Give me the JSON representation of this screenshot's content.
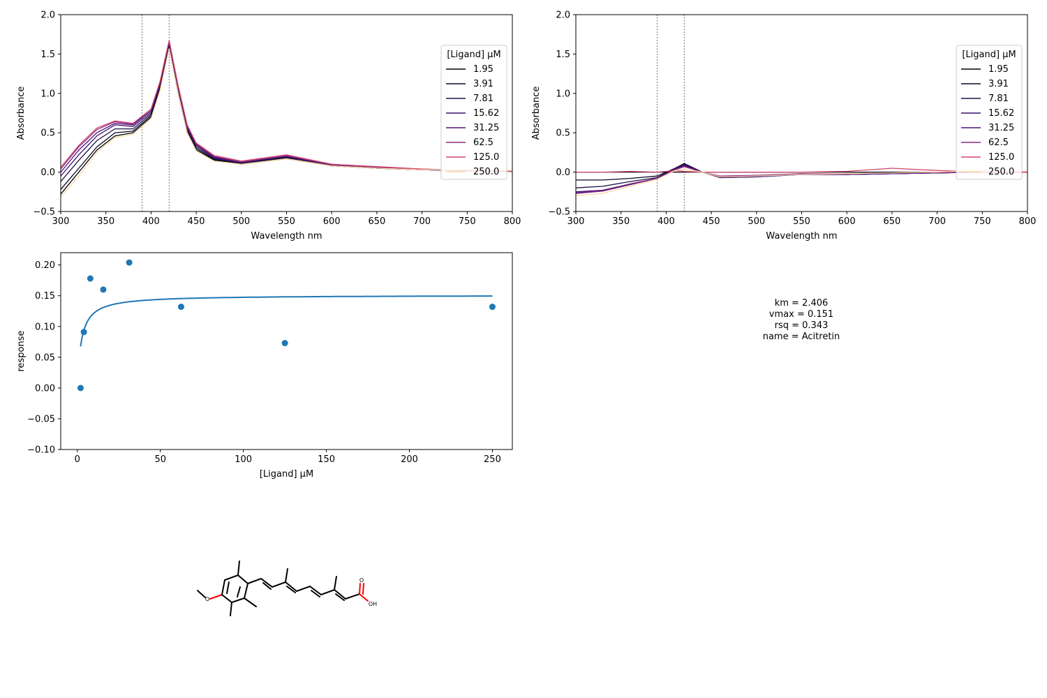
{
  "chart_data": [
    {
      "id": "spectra",
      "type": "line",
      "xlabel": "Wavelength nm",
      "ylabel": "Absorbance",
      "xlim": [
        300,
        800
      ],
      "ylim": [
        -0.5,
        2.0
      ],
      "xticks": [
        "300",
        "350",
        "400",
        "450",
        "500",
        "550",
        "600",
        "650",
        "700",
        "750",
        "800"
      ],
      "yticks": [
        "-0.5",
        "0.0",
        "0.5",
        "1.0",
        "1.5",
        "2.0"
      ],
      "vlines": [
        390,
        420
      ],
      "legend": {
        "title": "[Ligand] µM",
        "placement": "right"
      },
      "series": [
        {
          "name": "1.95",
          "color": "#000004",
          "x": [
            300,
            320,
            340,
            360,
            380,
            400,
            410,
            420,
            430,
            440,
            450,
            470,
            500,
            550,
            600,
            650,
            700,
            750,
            800
          ],
          "y": [
            -0.28,
            0.0,
            0.28,
            0.46,
            0.5,
            0.7,
            1.05,
            1.58,
            1.0,
            0.5,
            0.28,
            0.15,
            0.1,
            0.17,
            0.08,
            0.05,
            0.03,
            0.02,
            0.01
          ]
        },
        {
          "name": "3.91",
          "color": "#0b0724",
          "x": [
            300,
            320,
            340,
            360,
            380,
            400,
            410,
            420,
            430,
            440,
            450,
            470,
            500,
            550,
            600,
            650,
            700,
            750,
            800
          ],
          "y": [
            -0.22,
            0.05,
            0.32,
            0.5,
            0.52,
            0.72,
            1.08,
            1.6,
            1.02,
            0.52,
            0.3,
            0.16,
            0.11,
            0.18,
            0.08,
            0.05,
            0.03,
            0.02,
            0.01
          ]
        },
        {
          "name": "7.81",
          "color": "#1d1147",
          "x": [
            300,
            320,
            340,
            360,
            380,
            400,
            410,
            420,
            430,
            440,
            450,
            470,
            500,
            550,
            600,
            650,
            700,
            750,
            800
          ],
          "y": [
            -0.12,
            0.15,
            0.4,
            0.55,
            0.55,
            0.74,
            1.1,
            1.62,
            1.04,
            0.54,
            0.32,
            0.17,
            0.12,
            0.19,
            0.09,
            0.05,
            0.03,
            0.02,
            0.01
          ]
        },
        {
          "name": "15.62",
          "color": "#3b0f70",
          "x": [
            300,
            320,
            340,
            360,
            380,
            400,
            410,
            420,
            430,
            440,
            450,
            470,
            500,
            550,
            600,
            650,
            700,
            750,
            800
          ],
          "y": [
            -0.05,
            0.22,
            0.46,
            0.6,
            0.58,
            0.76,
            1.12,
            1.64,
            1.06,
            0.56,
            0.34,
            0.18,
            0.12,
            0.2,
            0.09,
            0.05,
            0.03,
            0.02,
            0.01
          ]
        },
        {
          "name": "31.25",
          "color": "#51127c",
          "x": [
            300,
            320,
            340,
            360,
            380,
            400,
            410,
            420,
            430,
            440,
            450,
            470,
            500,
            550,
            600,
            650,
            700,
            750,
            800
          ],
          "y": [
            0.0,
            0.28,
            0.5,
            0.62,
            0.6,
            0.78,
            1.14,
            1.66,
            1.08,
            0.58,
            0.35,
            0.19,
            0.13,
            0.2,
            0.09,
            0.06,
            0.03,
            0.02,
            0.01
          ]
        },
        {
          "name": "62.5",
          "color": "#8c2981",
          "x": [
            300,
            320,
            340,
            360,
            380,
            400,
            410,
            420,
            430,
            440,
            450,
            470,
            500,
            550,
            600,
            650,
            700,
            750,
            800
          ],
          "y": [
            0.04,
            0.32,
            0.54,
            0.64,
            0.61,
            0.8,
            1.15,
            1.67,
            1.09,
            0.59,
            0.36,
            0.2,
            0.13,
            0.21,
            0.1,
            0.06,
            0.04,
            0.02,
            0.01
          ]
        },
        {
          "name": "125.0",
          "color": "#d3436e",
          "x": [
            300,
            320,
            340,
            360,
            380,
            400,
            410,
            420,
            430,
            440,
            450,
            470,
            500,
            550,
            600,
            650,
            700,
            750,
            800
          ],
          "y": [
            0.06,
            0.34,
            0.56,
            0.65,
            0.62,
            0.8,
            1.15,
            1.67,
            1.1,
            0.6,
            0.37,
            0.21,
            0.14,
            0.22,
            0.1,
            0.07,
            0.04,
            0.02,
            0.01
          ]
        },
        {
          "name": "250.0",
          "color": "#fcd8a3",
          "x": [
            300,
            320,
            340,
            360,
            380,
            400,
            410,
            420,
            430,
            440,
            450,
            470,
            500,
            550,
            600,
            650,
            700,
            750,
            800
          ],
          "y": [
            -0.32,
            -0.05,
            0.25,
            0.44,
            0.48,
            0.68,
            1.04,
            1.57,
            1.0,
            0.5,
            0.27,
            0.14,
            0.1,
            0.17,
            0.08,
            0.05,
            0.03,
            0.03,
            0.02
          ]
        }
      ]
    },
    {
      "id": "difference",
      "type": "line",
      "xlabel": "Wavelength nm",
      "ylabel": "Absorbance",
      "xlim": [
        300,
        800
      ],
      "ylim": [
        -0.5,
        2.0
      ],
      "xticks": [
        "300",
        "350",
        "400",
        "450",
        "500",
        "550",
        "600",
        "650",
        "700",
        "750",
        "800"
      ],
      "yticks": [
        "-0.5",
        "0.0",
        "0.5",
        "1.0",
        "1.5",
        "2.0"
      ],
      "vlines": [
        390,
        420
      ],
      "legend": {
        "title": "[Ligand] µM",
        "placement": "right"
      },
      "series": [
        {
          "name": "1.95",
          "color": "#000004",
          "x": [
            300,
            350,
            400,
            420,
            440,
            460,
            500,
            550,
            600,
            650,
            700,
            750,
            800
          ],
          "y": [
            0.0,
            0.0,
            0.0,
            0.0,
            0.0,
            0.0,
            0.0,
            0.0,
            0.0,
            0.0,
            0.0,
            0.0,
            0.0
          ]
        },
        {
          "name": "3.91",
          "color": "#0b0724",
          "x": [
            300,
            330,
            360,
            390,
            410,
            420,
            440,
            460,
            500,
            550,
            600,
            650,
            700,
            750,
            800
          ],
          "y": [
            -0.1,
            -0.1,
            -0.08,
            -0.05,
            0.05,
            0.11,
            0.0,
            -0.06,
            -0.05,
            -0.02,
            -0.03,
            -0.02,
            -0.01,
            0.0,
            0.0
          ]
        },
        {
          "name": "7.81",
          "color": "#1d1147",
          "x": [
            300,
            330,
            360,
            390,
            410,
            420,
            440,
            460,
            500,
            550,
            600,
            650,
            700,
            750,
            800
          ],
          "y": [
            -0.2,
            -0.18,
            -0.12,
            -0.07,
            0.05,
            0.1,
            0.0,
            -0.07,
            -0.06,
            -0.03,
            -0.03,
            -0.02,
            -0.01,
            0.0,
            0.0
          ]
        },
        {
          "name": "15.62",
          "color": "#3b0f70",
          "x": [
            300,
            330,
            360,
            390,
            410,
            420,
            440,
            460,
            500,
            550,
            600,
            650,
            700,
            750,
            800
          ],
          "y": [
            -0.25,
            -0.23,
            -0.15,
            -0.08,
            0.04,
            0.09,
            0.0,
            -0.07,
            -0.06,
            -0.03,
            -0.03,
            -0.02,
            -0.01,
            0.0,
            0.0
          ]
        },
        {
          "name": "31.25",
          "color": "#51127c",
          "x": [
            300,
            330,
            360,
            390,
            410,
            420,
            440,
            460,
            500,
            550,
            600,
            650,
            700,
            750,
            800
          ],
          "y": [
            -0.27,
            -0.24,
            -0.16,
            -0.08,
            0.04,
            0.08,
            0.0,
            -0.06,
            -0.05,
            -0.03,
            -0.03,
            -0.02,
            -0.01,
            0.0,
            0.0
          ]
        },
        {
          "name": "62.5",
          "color": "#8c2981",
          "x": [
            300,
            330,
            360,
            390,
            410,
            420,
            440,
            460,
            500,
            550,
            600,
            650,
            700,
            750,
            800
          ],
          "y": [
            -0.26,
            -0.24,
            -0.15,
            -0.08,
            0.03,
            0.07,
            0.0,
            -0.05,
            -0.04,
            -0.02,
            -0.02,
            -0.01,
            0.0,
            0.0,
            0.0
          ]
        },
        {
          "name": "125.0",
          "color": "#d3436e",
          "x": [
            300,
            330,
            360,
            390,
            410,
            420,
            440,
            460,
            500,
            550,
            600,
            650,
            700,
            750,
            800
          ],
          "y": [
            0.0,
            0.0,
            0.01,
            0.0,
            0.02,
            0.01,
            0.0,
            0.0,
            0.0,
            0.0,
            0.01,
            0.05,
            0.02,
            0.0,
            0.0
          ]
        },
        {
          "name": "250.0",
          "color": "#fcd8a3",
          "x": [
            300,
            330,
            360,
            390,
            410,
            420,
            440,
            460,
            500,
            550,
            600,
            650,
            700,
            750,
            800
          ],
          "y": [
            -0.3,
            -0.27,
            -0.18,
            -0.09,
            0.02,
            0.04,
            0.0,
            -0.06,
            -0.05,
            -0.03,
            -0.02,
            -0.01,
            0.0,
            0.02,
            0.01
          ]
        }
      ]
    },
    {
      "id": "binding",
      "type": "scatter",
      "xlabel": "[Ligand] µM",
      "ylabel": "response",
      "xlim": [
        -10,
        262
      ],
      "ylim": [
        -0.1,
        0.22
      ],
      "xticks": [
        0,
        50,
        100,
        150,
        200,
        250
      ],
      "yticks": [
        -0.1,
        -0.05,
        0.0,
        0.05,
        0.1,
        0.15,
        0.2
      ],
      "ytick_labels": [
        "−0.10",
        "−0.05",
        "0.00",
        "0.05",
        "0.10",
        "0.15",
        "0.20"
      ],
      "points_color": "#1f77b4",
      "x": [
        1.95,
        3.91,
        7.81,
        15.62,
        31.25,
        62.5,
        125.0,
        250.0
      ],
      "y": [
        0.0,
        0.091,
        0.178,
        0.16,
        0.204,
        0.132,
        0.073,
        0.132
      ],
      "fit": {
        "model": "michaelis-menten",
        "km": 2.406,
        "vmax": 0.151,
        "x_range": [
          1.95,
          250.0
        ],
        "color": "#1f77b4"
      }
    }
  ],
  "stats": {
    "km": "km = 2.406",
    "vmax": "vmax = 0.151",
    "rsq": "rsq = 0.343",
    "name": "name = Acitretin"
  },
  "molecule": {
    "o_label": "O",
    "carbonyl_o_label": "O",
    "oh_label": "OH",
    "heteroatom_color": "#ff0000"
  }
}
